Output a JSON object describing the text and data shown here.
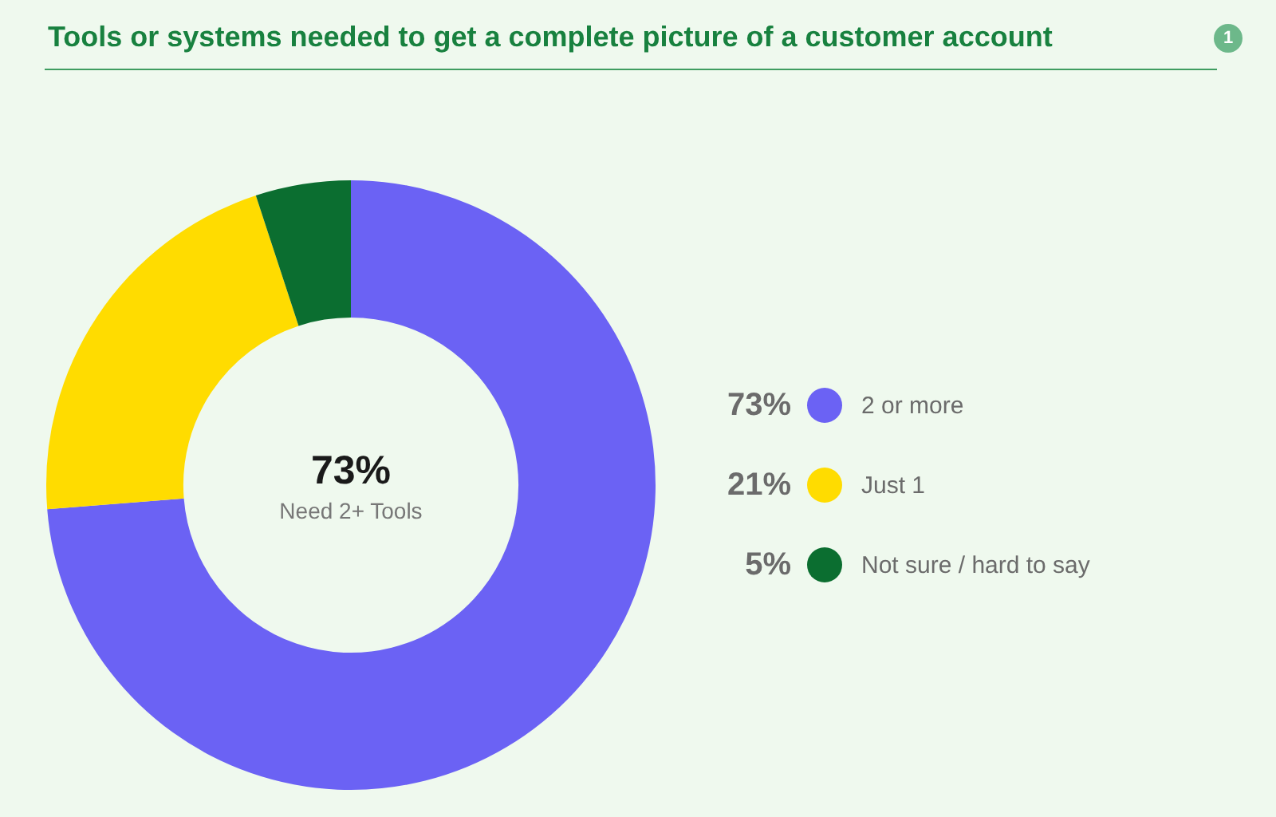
{
  "chart_data": {
    "type": "donut",
    "title": "Tools or systems needed to get a complete picture of a customer account",
    "categories": [
      "2 or more",
      "Just 1",
      "Not sure / hard to say"
    ],
    "values": [
      73,
      21,
      5
    ],
    "colors": [
      "#6b62f4",
      "#ffdc00",
      "#0b6e30"
    ],
    "value_labels": [
      "73%",
      "21%",
      "5%"
    ],
    "legend": "right",
    "annotations": [
      "73%",
      "Need 2+ Tools",
      "1"
    ]
  }
}
